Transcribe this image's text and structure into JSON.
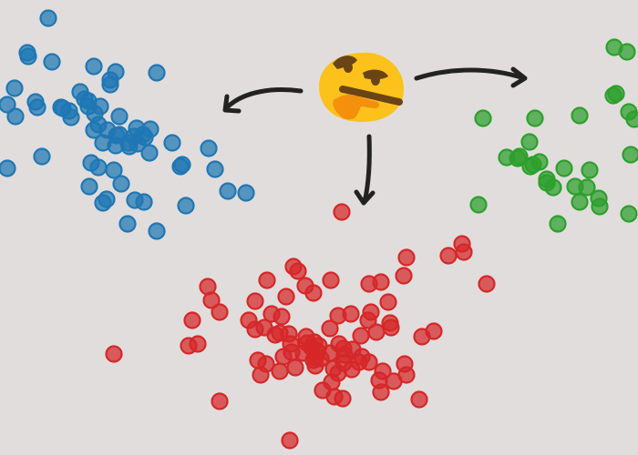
{
  "colors": {
    "background": "#e1dddc",
    "blue": "#1f77b4",
    "green": "#2ca02c",
    "red": "#d62728",
    "arrow": "#222222",
    "emoji_face": "#fcc21b",
    "emoji_dark": "#6b4415",
    "emoji_hand": "#f4900c"
  },
  "icons": {
    "center": "thinking-face-icon",
    "arrow_left": "curved-arrow-left-icon",
    "arrow_down": "curved-arrow-down-icon",
    "arrow_right": "curved-arrow-right-icon"
  },
  "clusters": {
    "blue": {
      "name": "",
      "count": 62
    },
    "green": {
      "name": "",
      "count": 30
    },
    "red": {
      "name": "",
      "count": 88
    }
  }
}
